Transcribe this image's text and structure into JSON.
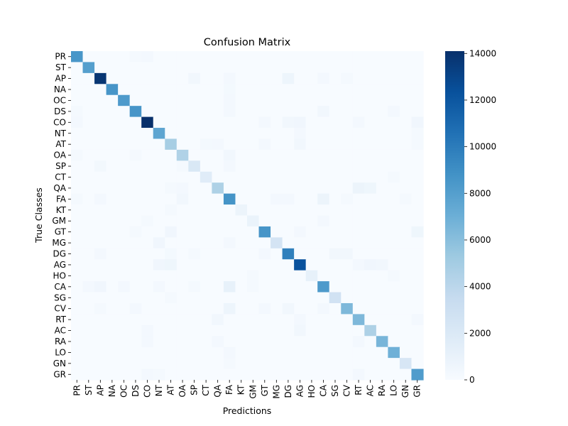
{
  "chart_data": {
    "type": "heatmap",
    "title": "Confusion Matrix",
    "xlabel": "Predictions",
    "ylabel": "True Classes",
    "classes": [
      "PR",
      "ST",
      "AP",
      "NA",
      "OC",
      "DS",
      "CO",
      "NT",
      "AT",
      "OA",
      "SP",
      "CT",
      "QA",
      "FA",
      "KT",
      "GM",
      "GT",
      "MG",
      "DG",
      "AG",
      "HO",
      "CA",
      "SG",
      "CV",
      "RT",
      "AC",
      "RA",
      "LO",
      "GN",
      "GR"
    ],
    "diagonal": [
      8500,
      8000,
      13800,
      8600,
      8300,
      8600,
      14100,
      7600,
      4900,
      4500,
      2100,
      1600,
      4600,
      8700,
      800,
      900,
      8600,
      2500,
      9800,
      12300,
      1100,
      8300,
      2700,
      6400,
      6400,
      4600,
      6600,
      6900,
      2300,
      8200
    ],
    "off_diagonal": [
      {
        "row": "PR",
        "col": "CO",
        "value": 300
      },
      {
        "row": "PR",
        "col": "DS",
        "value": 200
      },
      {
        "row": "AP",
        "col": "SP",
        "value": 400
      },
      {
        "row": "AP",
        "col": "FA",
        "value": 300
      },
      {
        "row": "AP",
        "col": "DG",
        "value": 700
      },
      {
        "row": "AP",
        "col": "CA",
        "value": 300
      },
      {
        "row": "AP",
        "col": "CV",
        "value": 200
      },
      {
        "row": "NA",
        "col": "FA",
        "value": 250
      },
      {
        "row": "OC",
        "col": "FA",
        "value": 300
      },
      {
        "row": "DS",
        "col": "FA",
        "value": 300
      },
      {
        "row": "DS",
        "col": "CA",
        "value": 400
      },
      {
        "row": "DS",
        "col": "LO",
        "value": 300
      },
      {
        "row": "DS",
        "col": "PR",
        "value": 200
      },
      {
        "row": "CO",
        "col": "PR",
        "value": 300
      },
      {
        "row": "CO",
        "col": "GT",
        "value": 300
      },
      {
        "row": "CO",
        "col": "DG",
        "value": 400
      },
      {
        "row": "CO",
        "col": "AG",
        "value": 500
      },
      {
        "row": "CO",
        "col": "RT",
        "value": 300
      },
      {
        "row": "CO",
        "col": "GR",
        "value": 500
      },
      {
        "row": "NT",
        "col": "AG",
        "value": 300
      },
      {
        "row": "NT",
        "col": "GR",
        "value": 200
      },
      {
        "row": "AT",
        "col": "CT",
        "value": 250
      },
      {
        "row": "AT",
        "col": "QA",
        "value": 300
      },
      {
        "row": "AT",
        "col": "GT",
        "value": 300
      },
      {
        "row": "AT",
        "col": "AG",
        "value": 400
      },
      {
        "row": "AT",
        "col": "GR",
        "value": 200
      },
      {
        "row": "OA",
        "col": "FA",
        "value": 400
      },
      {
        "row": "OA",
        "col": "PR",
        "value": 200
      },
      {
        "row": "OA",
        "col": "DS",
        "value": 200
      },
      {
        "row": "SP",
        "col": "AP",
        "value": 350
      },
      {
        "row": "SP",
        "col": "FA",
        "value": 300
      },
      {
        "row": "SP",
        "col": "OA",
        "value": 200
      },
      {
        "row": "CT",
        "col": "LO",
        "value": 200
      },
      {
        "row": "QA",
        "col": "RT",
        "value": 800
      },
      {
        "row": "QA",
        "col": "AC",
        "value": 600
      },
      {
        "row": "QA",
        "col": "OA",
        "value": 300
      },
      {
        "row": "QA",
        "col": "AT",
        "value": 200
      },
      {
        "row": "FA",
        "col": "CA",
        "value": 800
      },
      {
        "row": "FA",
        "col": "OA",
        "value": 400
      },
      {
        "row": "FA",
        "col": "AP",
        "value": 300
      },
      {
        "row": "FA",
        "col": "MG",
        "value": 300
      },
      {
        "row": "FA",
        "col": "DG",
        "value": 300
      },
      {
        "row": "FA",
        "col": "PR",
        "value": 200
      },
      {
        "row": "FA",
        "col": "CV",
        "value": 200
      },
      {
        "row": "FA",
        "col": "GN",
        "value": 200
      },
      {
        "row": "KT",
        "col": "AT",
        "value": 200
      },
      {
        "row": "GM",
        "col": "CA",
        "value": 300
      },
      {
        "row": "GM",
        "col": "CO",
        "value": 200
      },
      {
        "row": "GT",
        "col": "AT",
        "value": 500
      },
      {
        "row": "GT",
        "col": "GR",
        "value": 600
      },
      {
        "row": "GT",
        "col": "DS",
        "value": 200
      },
      {
        "row": "GT",
        "col": "AG",
        "value": 300
      },
      {
        "row": "MG",
        "col": "NT",
        "value": 500
      },
      {
        "row": "MG",
        "col": "FA",
        "value": 300
      },
      {
        "row": "DG",
        "col": "AP",
        "value": 300
      },
      {
        "row": "DG",
        "col": "SG",
        "value": 400
      },
      {
        "row": "DG",
        "col": "CV",
        "value": 400
      },
      {
        "row": "DG",
        "col": "AT",
        "value": 250
      },
      {
        "row": "DG",
        "col": "SP",
        "value": 200
      },
      {
        "row": "DG",
        "col": "GT",
        "value": 300
      },
      {
        "row": "AG",
        "col": "NT",
        "value": 500
      },
      {
        "row": "AG",
        "col": "AT",
        "value": 600
      },
      {
        "row": "AG",
        "col": "AC",
        "value": 500
      },
      {
        "row": "AG",
        "col": "RA",
        "value": 400
      },
      {
        "row": "AG",
        "col": "RT",
        "value": 300
      },
      {
        "row": "HO",
        "col": "LO",
        "value": 200
      },
      {
        "row": "HO",
        "col": "GM",
        "value": 200
      },
      {
        "row": "CA",
        "col": "FA",
        "value": 1100
      },
      {
        "row": "CA",
        "col": "AP",
        "value": 500
      },
      {
        "row": "CA",
        "col": "OC",
        "value": 300
      },
      {
        "row": "CA",
        "col": "ST",
        "value": 300
      },
      {
        "row": "CA",
        "col": "NT",
        "value": 300
      },
      {
        "row": "CA",
        "col": "SP",
        "value": 200
      },
      {
        "row": "CA",
        "col": "GM",
        "value": 200
      },
      {
        "row": "SG",
        "col": "AT",
        "value": 200
      },
      {
        "row": "CV",
        "col": "FA",
        "value": 700
      },
      {
        "row": "CV",
        "col": "DG",
        "value": 400
      },
      {
        "row": "CV",
        "col": "CA",
        "value": 300
      },
      {
        "row": "CV",
        "col": "AP",
        "value": 200
      },
      {
        "row": "CV",
        "col": "GT",
        "value": 300
      },
      {
        "row": "CV",
        "col": "DS",
        "value": 300
      },
      {
        "row": "RT",
        "col": "QA",
        "value": 400
      },
      {
        "row": "RT",
        "col": "AG",
        "value": 300
      },
      {
        "row": "RT",
        "col": "GR",
        "value": 300
      },
      {
        "row": "AC",
        "col": "AG",
        "value": 400
      },
      {
        "row": "AC",
        "col": "CO",
        "value": 300
      },
      {
        "row": "RA",
        "col": "QA",
        "value": 300
      },
      {
        "row": "RA",
        "col": "CO",
        "value": 300
      },
      {
        "row": "RA",
        "col": "RT",
        "value": 300
      },
      {
        "row": "LO",
        "col": "FA",
        "value": 300
      },
      {
        "row": "GN",
        "col": "FA",
        "value": 200
      },
      {
        "row": "GR",
        "col": "CO",
        "value": 300
      },
      {
        "row": "GR",
        "col": "RT",
        "value": 300
      },
      {
        "row": "GR",
        "col": "NT",
        "value": 200
      }
    ],
    "colorbar": {
      "min": 0,
      "max": 14100,
      "ticks": [
        0,
        2000,
        4000,
        6000,
        8000,
        10000,
        12000,
        14000
      ],
      "colormap": "Blues",
      "colors": [
        "#f7fbff",
        "#deebf7",
        "#c6dbef",
        "#9ecae1",
        "#6baed6",
        "#4292c6",
        "#2171b5",
        "#08519c",
        "#08306b"
      ]
    }
  }
}
